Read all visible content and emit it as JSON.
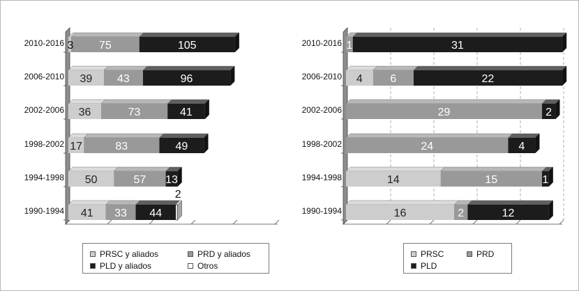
{
  "colors": {
    "prsc": "#cdcdcd",
    "prd": "#999999",
    "pld": "#1c1c1c",
    "otros": "#ffffff"
  },
  "chart_data": [
    {
      "type": "bar",
      "stacked": true,
      "orientation": "horizontal",
      "categories": [
        "2010-2016",
        "2006-2010",
        "2002-2006",
        "1998-2002",
        "1994-1998",
        "1990-1994"
      ],
      "series": [
        {
          "name": "PRSC y aliados",
          "key": "prsc",
          "values": [
            3,
            39,
            36,
            17,
            50,
            41
          ]
        },
        {
          "name": "PRD y aliados",
          "key": "prd",
          "values": [
            75,
            43,
            73,
            83,
            57,
            33
          ]
        },
        {
          "name": "PLD y aliados",
          "key": "pld",
          "values": [
            105,
            96,
            41,
            49,
            13,
            44
          ]
        },
        {
          "name": "Otros",
          "key": "otros",
          "values": [
            0,
            0,
            0,
            0,
            0,
            2
          ]
        }
      ],
      "xlim": [
        0,
        230
      ],
      "grid": false,
      "legend_position": "bottom"
    },
    {
      "type": "bar",
      "stacked": true,
      "orientation": "horizontal",
      "categories": [
        "2010-2016",
        "2006-2010",
        "2002-2006",
        "1998-2002",
        "1994-1998",
        "1990-1994"
      ],
      "series": [
        {
          "name": "PRSC",
          "key": "prsc",
          "values": [
            0,
            4,
            0,
            0,
            14,
            16
          ]
        },
        {
          "name": "PRD",
          "key": "prd",
          "values": [
            1,
            6,
            29,
            24,
            15,
            2
          ]
        },
        {
          "name": "PLD",
          "key": "pld",
          "values": [
            31,
            22,
            2,
            4,
            1,
            12
          ]
        }
      ],
      "xlim": [
        0,
        32
      ],
      "grid": true,
      "legend_position": "bottom"
    }
  ]
}
